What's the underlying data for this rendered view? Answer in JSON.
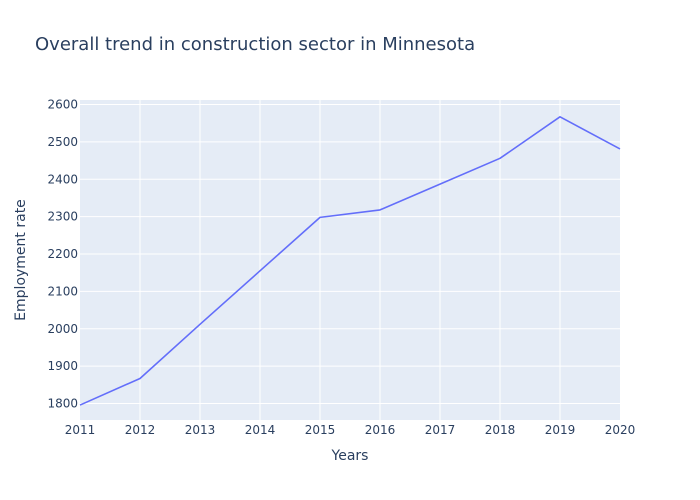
{
  "chart_data": {
    "type": "line",
    "title": "Overall trend in construction sector in Minnesota",
    "xlabel": "Years",
    "ylabel": "Employment rate",
    "x": [
      2011,
      2012,
      2013,
      2014,
      2015,
      2016,
      2017,
      2018,
      2019,
      2020
    ],
    "series": [
      {
        "values": [
          1796,
          1867,
          2012,
          2155,
          2298,
          2318,
          2387,
          2456,
          2567,
          2481
        ],
        "color": "#636efa"
      }
    ],
    "xlim": [
      2011,
      2020
    ],
    "ylim": [
      1756,
      2612
    ],
    "xticks": [
      2011,
      2012,
      2013,
      2014,
      2015,
      2016,
      2017,
      2018,
      2019,
      2020
    ],
    "yticks": [
      1800,
      1900,
      2000,
      2100,
      2200,
      2300,
      2400,
      2500,
      2600
    ],
    "grid": true,
    "plot_background": "#e5ecf6",
    "grid_color": "#ffffff",
    "text_color": "#2a3f5f"
  }
}
